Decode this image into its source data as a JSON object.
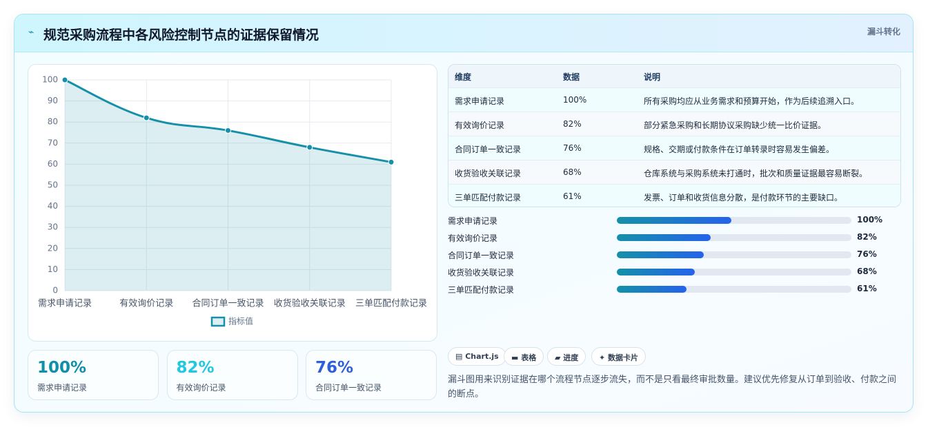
{
  "header": {
    "icon": "⌁",
    "title": "规范采购流程中各风险控制节点的证据保留情况",
    "badge": "漏斗转化"
  },
  "chart_data": {
    "type": "line",
    "categories": [
      "需求申请记录",
      "有效询价记录",
      "合同订单一致记录",
      "收货验收关联记录",
      "三单匹配付款记录"
    ],
    "series": [
      {
        "name": "指标值",
        "color": "#1590a8",
        "values": [
          100,
          82,
          76,
          68,
          61
        ]
      }
    ],
    "ylim": [
      0,
      100
    ],
    "yticks": [
      0,
      10,
      20,
      30,
      40,
      50,
      60,
      70,
      80,
      90,
      100
    ],
    "grid": true,
    "legend": "bottom"
  },
  "kpis": [
    {
      "value": "100%",
      "label": "需求申请记录",
      "color": "#0f8fa8"
    },
    {
      "value": "82%",
      "label": "有效询价记录",
      "color": "#22c8e0"
    },
    {
      "value": "76%",
      "label": "合同订单一致记录",
      "color": "#2f5fd8"
    }
  ],
  "table": {
    "columns": [
      "维度",
      "数据",
      "说明"
    ],
    "rows": [
      [
        "需求申请记录",
        "100%",
        "所有采购均应从业务需求和预算开始，作为后续追溯入口。"
      ],
      [
        "有效询价记录",
        "82%",
        "部分紧急采购和长期协议采购缺少统一比价证据。"
      ],
      [
        "合同订单一致记录",
        "76%",
        "规格、交期或付款条件在订单转录时容易发生偏差。"
      ],
      [
        "收货验收关联记录",
        "68%",
        "仓库系统与采购系统未打通时，批次和质量证据最容易断裂。"
      ],
      [
        "三单匹配付款记录",
        "61%",
        "发票、订单和收货信息分散，是付款环节的主要缺口。"
      ]
    ]
  },
  "progress": {
    "xlim": [
      0,
      205
    ],
    "items": [
      {
        "label": "需求申请记录",
        "value": 100,
        "value_label": "100%"
      },
      {
        "label": "有效询价记录",
        "value": 82,
        "value_label": "82%"
      },
      {
        "label": "合同订单一致记录",
        "value": 76,
        "value_label": "76%"
      },
      {
        "label": "收货验收关联记录",
        "value": 68,
        "value_label": "68%"
      },
      {
        "label": "三单匹配付款记录",
        "value": 61,
        "value_label": "61%"
      }
    ]
  },
  "tags": [
    "▤ Chart.js",
    "▬ 表格",
    "▰ 进度",
    "✦ 数据卡片"
  ],
  "note": "漏斗图用来识别证据在哪个流程节点逐步流失，而不是只看最终审批数量。建议优先修复从订单到验收、付款之间的断点。"
}
